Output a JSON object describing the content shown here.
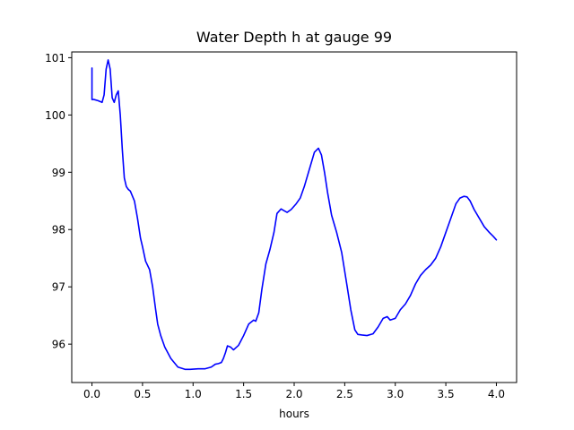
{
  "chart_data": {
    "type": "line",
    "title": "Water Depth h at gauge 99",
    "xlabel": "hours",
    "ylabel": "",
    "xlim": [
      -0.2,
      4.2
    ],
    "ylim": [
      95.33,
      101.1
    ],
    "grid": false,
    "x_ticks": [
      0.0,
      0.5,
      1.0,
      1.5,
      2.0,
      2.5,
      3.0,
      3.5,
      4.0
    ],
    "x_tick_labels": [
      "0.0",
      "0.5",
      "1.0",
      "1.5",
      "2.0",
      "2.5",
      "3.0",
      "3.5",
      "4.0"
    ],
    "y_ticks": [
      96,
      97,
      98,
      99,
      100,
      101
    ],
    "y_tick_labels": [
      "96",
      "97",
      "98",
      "99",
      "100",
      "101"
    ],
    "series": [
      {
        "name": "",
        "color": "#0000ff",
        "x": [
          0.0,
          0.0,
          0.02,
          0.06,
          0.1,
          0.12,
          0.14,
          0.16,
          0.18,
          0.2,
          0.22,
          0.24,
          0.26,
          0.28,
          0.3,
          0.32,
          0.34,
          0.36,
          0.38,
          0.42,
          0.45,
          0.48,
          0.5,
          0.53,
          0.57,
          0.6,
          0.63,
          0.65,
          0.68,
          0.72,
          0.78,
          0.85,
          0.92,
          0.97,
          1.05,
          1.12,
          1.18,
          1.22,
          1.25,
          1.28,
          1.3,
          1.32,
          1.34,
          1.37,
          1.4,
          1.45,
          1.5,
          1.55,
          1.6,
          1.62,
          1.65,
          1.68,
          1.72,
          1.76,
          1.8,
          1.83,
          1.87,
          1.9,
          1.93,
          1.97,
          2.02,
          2.06,
          2.1,
          2.15,
          2.2,
          2.24,
          2.27,
          2.3,
          2.33,
          2.37,
          2.42,
          2.47,
          2.52,
          2.56,
          2.6,
          2.63,
          2.67,
          2.72,
          2.78,
          2.83,
          2.88,
          2.92,
          2.95,
          3.0,
          3.05,
          3.1,
          3.15,
          3.2,
          3.25,
          3.3,
          3.35,
          3.4,
          3.45,
          3.5,
          3.55,
          3.6,
          3.64,
          3.68,
          3.71,
          3.74,
          3.78,
          3.83,
          3.88,
          3.93,
          3.97,
          4.0
        ],
        "y": [
          100.82,
          100.27,
          100.27,
          100.25,
          100.22,
          100.35,
          100.8,
          100.96,
          100.8,
          100.3,
          100.22,
          100.35,
          100.42,
          100.0,
          99.4,
          98.9,
          98.75,
          98.7,
          98.67,
          98.5,
          98.2,
          97.85,
          97.7,
          97.45,
          97.3,
          97.0,
          96.6,
          96.35,
          96.15,
          95.95,
          95.75,
          95.6,
          95.56,
          95.56,
          95.57,
          95.57,
          95.6,
          95.65,
          95.66,
          95.68,
          95.75,
          95.85,
          95.97,
          95.95,
          95.9,
          95.98,
          96.15,
          96.35,
          96.42,
          96.4,
          96.55,
          96.95,
          97.4,
          97.65,
          97.95,
          98.28,
          98.36,
          98.33,
          98.3,
          98.35,
          98.45,
          98.55,
          98.75,
          99.05,
          99.35,
          99.42,
          99.3,
          99.0,
          98.65,
          98.25,
          97.95,
          97.6,
          97.05,
          96.6,
          96.25,
          96.17,
          96.16,
          96.15,
          96.18,
          96.3,
          96.45,
          96.48,
          96.42,
          96.45,
          96.6,
          96.7,
          96.85,
          97.05,
          97.2,
          97.3,
          97.38,
          97.5,
          97.7,
          97.95,
          98.2,
          98.45,
          98.55,
          98.58,
          98.57,
          98.5,
          98.35,
          98.2,
          98.05,
          97.95,
          97.88,
          97.82
        ]
      }
    ]
  }
}
